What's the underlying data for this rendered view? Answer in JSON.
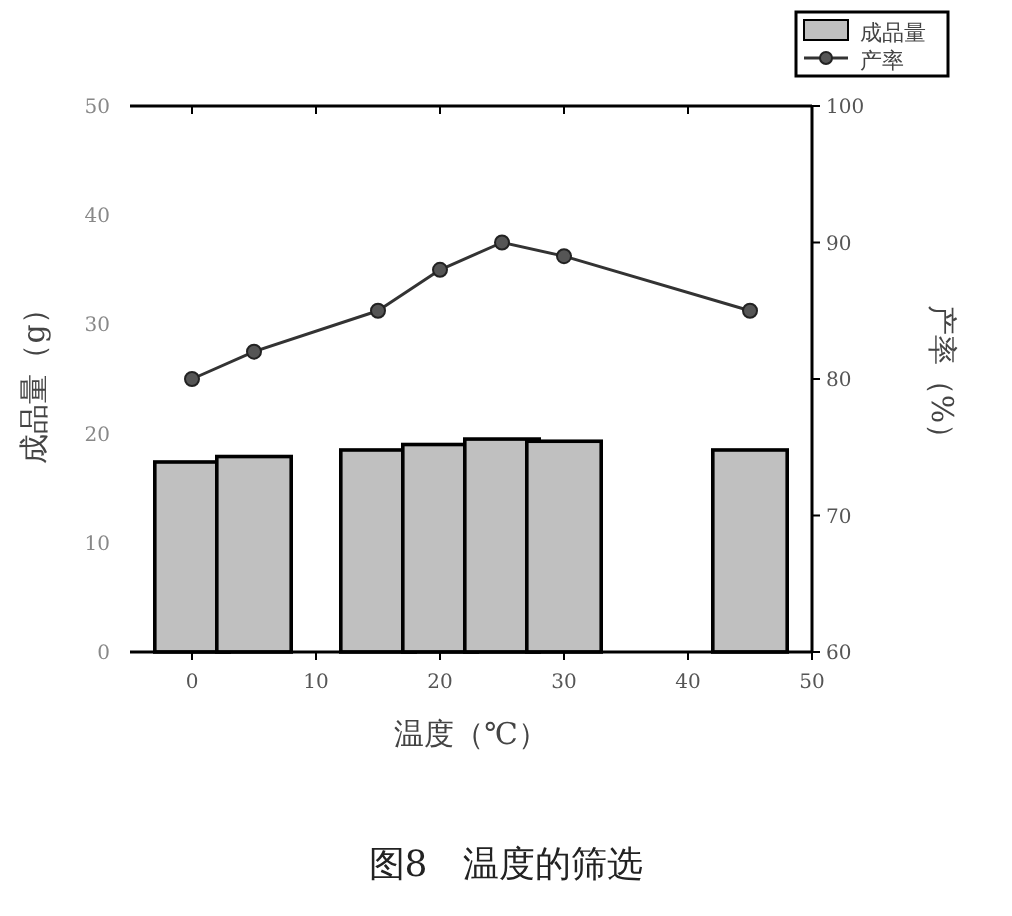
{
  "chart_data": {
    "type": "bar",
    "title": "图8　温度的筛选",
    "xlabel": "温度（℃）",
    "ylabel": "成品量（g）",
    "y2label": "产率（%）",
    "x": [
      0,
      5,
      15,
      20,
      25,
      30,
      45
    ],
    "series": [
      {
        "name": "成品量",
        "color": "#c0c0c0",
        "values": [
          17.4,
          17.9,
          18.5,
          19.0,
          19.5,
          19.3,
          18.5
        ]
      },
      {
        "name": "产率",
        "type": "line",
        "axis": "y2",
        "color": "#333333",
        "marker": "circle",
        "values": [
          80,
          82,
          85,
          88,
          90,
          89,
          85
        ]
      }
    ],
    "xlim": [
      -5,
      50
    ],
    "xticks": [
      0,
      10,
      20,
      30,
      40,
      50
    ],
    "ylim": [
      0,
      50
    ],
    "yticks": [
      0,
      10,
      20,
      30,
      40,
      50
    ],
    "y2lim": [
      60,
      100
    ],
    "y2ticks": [
      60,
      70,
      80,
      90,
      100
    ],
    "legend": "top right",
    "grid": false
  }
}
